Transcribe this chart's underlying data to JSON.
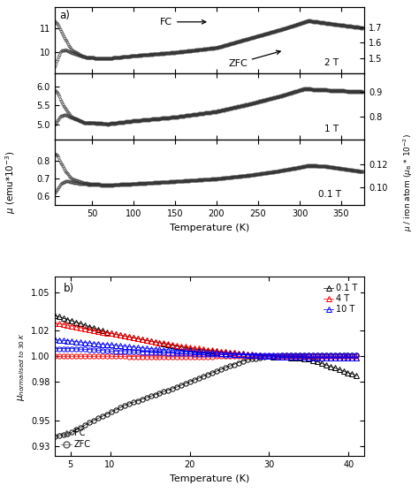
{
  "panel_a": {
    "xlim": [
      5,
      378
    ],
    "xticks": [
      50,
      100,
      150,
      200,
      250,
      300,
      350
    ],
    "xlabel": "Temperature (K)",
    "ylabel_left": "$\\mu$ (emu*10$^{-3}$)",
    "ylabel_right": "$\\mu$ / iron atom ($\\mu_B$ * 10$^{-2}$)",
    "sub1": {
      "label": "2 T",
      "ylim": [
        9.1,
        11.9
      ],
      "yticks": [
        10,
        11
      ],
      "yticks_r": [
        1.5,
        1.6,
        1.7
      ]
    },
    "sub2": {
      "label": "1 T",
      "ylim": [
        4.6,
        6.35
      ],
      "yticks": [
        5.0,
        5.5,
        6.0
      ],
      "yticks_r": [
        0.8,
        0.9
      ]
    },
    "sub3": {
      "label": "0.1 T",
      "ylim": [
        0.55,
        0.92
      ],
      "yticks": [
        0.6,
        0.7,
        0.8
      ],
      "yticks_r": [
        0.1,
        0.12
      ]
    }
  },
  "panel_b": {
    "xlim": [
      3,
      42
    ],
    "ylim": [
      0.922,
      1.062
    ],
    "yticks": [
      0.93,
      0.95,
      0.98,
      1.0,
      1.02,
      1.05
    ],
    "xticks": [
      5,
      10,
      20,
      30,
      40
    ],
    "xlabel": "Temperature (K)",
    "ylabel": "$\\mu_{normalised\\ to\\ 30\\ K}$"
  }
}
